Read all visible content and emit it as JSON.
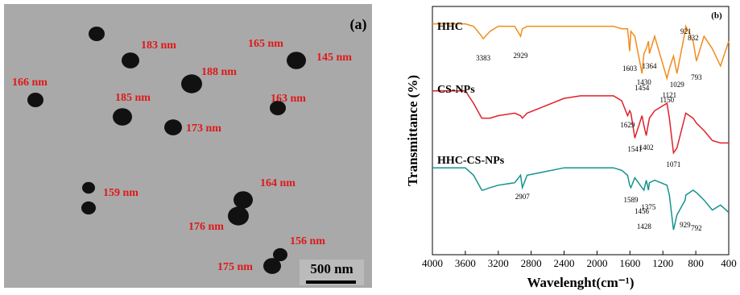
{
  "panel_a": {
    "label": "(a)",
    "particle_sizes": [
      "183 nm",
      "165 nm",
      "145 nm",
      "166 nm",
      "188 nm",
      "185 nm",
      "163 nm",
      "173 nm",
      "164 nm",
      "159 nm",
      "176 nm",
      "156 nm",
      "175 nm"
    ],
    "scale_bar": "500 nm"
  },
  "chart_data": {
    "type": "line",
    "panel_label": "(b)",
    "x_label": "Wavelenght(cm⁻¹)",
    "y_label": "Transmittance (%)",
    "x": [
      4000,
      3800,
      3600,
      3500,
      3400,
      3383,
      3300,
      3200,
      3000,
      2929,
      2907,
      2850,
      2700,
      2400,
      2200,
      2000,
      1800,
      1700,
      1629,
      1603,
      1589,
      1541,
      1454,
      1430,
      1402,
      1375,
      1364,
      1300,
      1150,
      1121,
      1071,
      1029,
      929,
      921,
      832,
      792,
      700,
      600,
      500,
      400
    ],
    "xlim": [
      4000,
      400
    ],
    "xticks": [
      4000,
      3600,
      3200,
      2800,
      2400,
      2000,
      1600,
      1200,
      800,
      400
    ],
    "ylim": [
      0,
      100
    ],
    "series": [
      {
        "name": "HHC",
        "color": "#f28c1c",
        "values": [
          93,
          93,
          93,
          92,
          88,
          87,
          90,
          92,
          92,
          88,
          91,
          92,
          92,
          92,
          92,
          92,
          92,
          91,
          91,
          82,
          90,
          88,
          73,
          81,
          83,
          86,
          81,
          88,
          71,
          75,
          80,
          73,
          90,
          92,
          86,
          78,
          88,
          83,
          76,
          86
        ],
        "peaks": [
          3383,
          2929,
          1603,
          1454,
          1430,
          1364,
          1121,
          1150,
          1029,
          921,
          832,
          793
        ]
      },
      {
        "name": "CS-NPs",
        "color": "#e0202a",
        "values": [
          66,
          66,
          66,
          61,
          55,
          55,
          55,
          56,
          57,
          56,
          55,
          57,
          59,
          63,
          64,
          64,
          64,
          62,
          56,
          58,
          57,
          47,
          56,
          52,
          48,
          53,
          55,
          58,
          61,
          55,
          41,
          43,
          56,
          57,
          55,
          53,
          50,
          46,
          45,
          45
        ],
        "peaks": [
          1629,
          1541,
          1402,
          1071
        ]
      },
      {
        "name": "HHC-CS-NPs",
        "color": "#16938f",
        "values": [
          35,
          35,
          35,
          32,
          26,
          26,
          27,
          28,
          29,
          32,
          27,
          32,
          33,
          35,
          35,
          35,
          35,
          34,
          32,
          28,
          27,
          31,
          27,
          26,
          30,
          26,
          29,
          30,
          28,
          24,
          10,
          16,
          22,
          24,
          26,
          25,
          22,
          18,
          20,
          17
        ],
        "peaks": [
          2907,
          1589,
          1456,
          1428,
          1375,
          929,
          792
        ]
      }
    ]
  }
}
